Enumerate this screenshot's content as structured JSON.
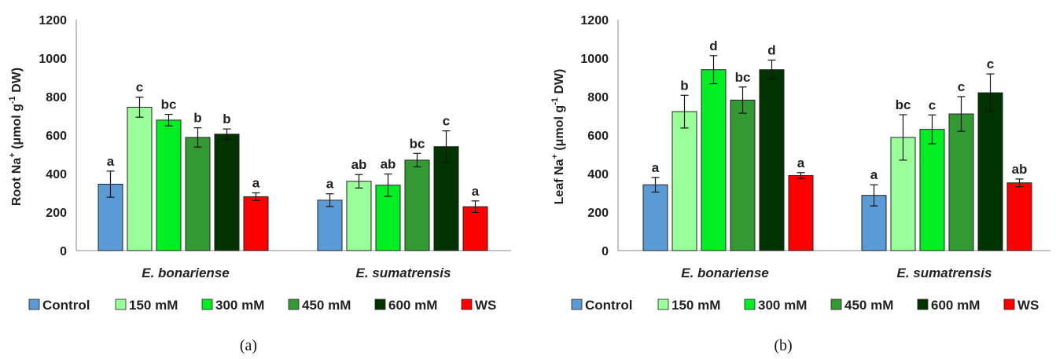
{
  "legend": [
    {
      "name": "Control",
      "color": "#5B9BD5"
    },
    {
      "name": "150 mM",
      "color": "#99FF99"
    },
    {
      "name": "300 mM",
      "color": "#00EE22"
    },
    {
      "name": "450 mM",
      "color": "#339933"
    },
    {
      "name": "600 mM",
      "color": "#003300"
    },
    {
      "name": "WS",
      "color": "#FF0000"
    }
  ],
  "chart_data": [
    {
      "panel_label": "(a)",
      "type": "bar",
      "ylabel_main": "Root Na",
      "ylabel_sup": "+",
      "ylabel_rest": " (μmol g",
      "ylabel_sup2": "-1",
      "ylabel_end": " DW)",
      "ylim": [
        0,
        1200
      ],
      "yticks": [
        0,
        200,
        400,
        600,
        800,
        1000,
        1200
      ],
      "categories": [
        "E. bonariense",
        "E. sumatrensis"
      ],
      "series": [
        {
          "name": "Control",
          "values": [
            345,
            262
          ],
          "errors": [
            68,
            33
          ],
          "letters": [
            "a",
            "a"
          ]
        },
        {
          "name": "150 mM",
          "values": [
            745,
            360
          ],
          "errors": [
            52,
            35
          ],
          "letters": [
            "c",
            "ab"
          ]
        },
        {
          "name": "300 mM",
          "values": [
            678,
            340
          ],
          "errors": [
            30,
            58
          ],
          "letters": [
            "bc",
            "ab"
          ]
        },
        {
          "name": "450 mM",
          "values": [
            588,
            470
          ],
          "errors": [
            50,
            35
          ],
          "letters": [
            "b",
            "bc"
          ]
        },
        {
          "name": "600 mM",
          "values": [
            605,
            540
          ],
          "errors": [
            27,
            82
          ],
          "letters": [
            "b",
            "c"
          ]
        },
        {
          "name": "WS",
          "values": [
            280,
            228
          ],
          "errors": [
            20,
            30
          ],
          "letters": [
            "a",
            "a"
          ]
        }
      ],
      "grid": false,
      "legend_position": "bottom"
    },
    {
      "panel_label": "(b)",
      "type": "bar",
      "ylabel_main": "Leaf Na",
      "ylabel_sup": "+",
      "ylabel_rest": " (μmol g",
      "ylabel_sup2": "-1",
      "ylabel_end": " DW)",
      "ylim": [
        0,
        1200
      ],
      "yticks": [
        0,
        200,
        400,
        600,
        800,
        1000,
        1200
      ],
      "categories": [
        "E. bonariense",
        "E. sumatrensis"
      ],
      "series": [
        {
          "name": "Control",
          "values": [
            342,
            287
          ],
          "errors": [
            38,
            55
          ],
          "letters": [
            "a",
            "a"
          ]
        },
        {
          "name": "150 mM",
          "values": [
            722,
            588
          ],
          "errors": [
            85,
            118
          ],
          "letters": [
            "b",
            "bc"
          ]
        },
        {
          "name": "300 mM",
          "values": [
            940,
            630
          ],
          "errors": [
            73,
            75
          ],
          "letters": [
            "d",
            "c"
          ]
        },
        {
          "name": "450 mM",
          "values": [
            782,
            710
          ],
          "errors": [
            68,
            90
          ],
          "letters": [
            "bc",
            "c"
          ]
        },
        {
          "name": "600 mM",
          "values": [
            940,
            820
          ],
          "errors": [
            50,
            98
          ],
          "letters": [
            "d",
            "c"
          ]
        },
        {
          "name": "WS",
          "values": [
            390,
            352
          ],
          "errors": [
            15,
            20
          ],
          "letters": [
            "a",
            "ab"
          ]
        }
      ],
      "grid": false,
      "legend_position": "bottom"
    }
  ]
}
